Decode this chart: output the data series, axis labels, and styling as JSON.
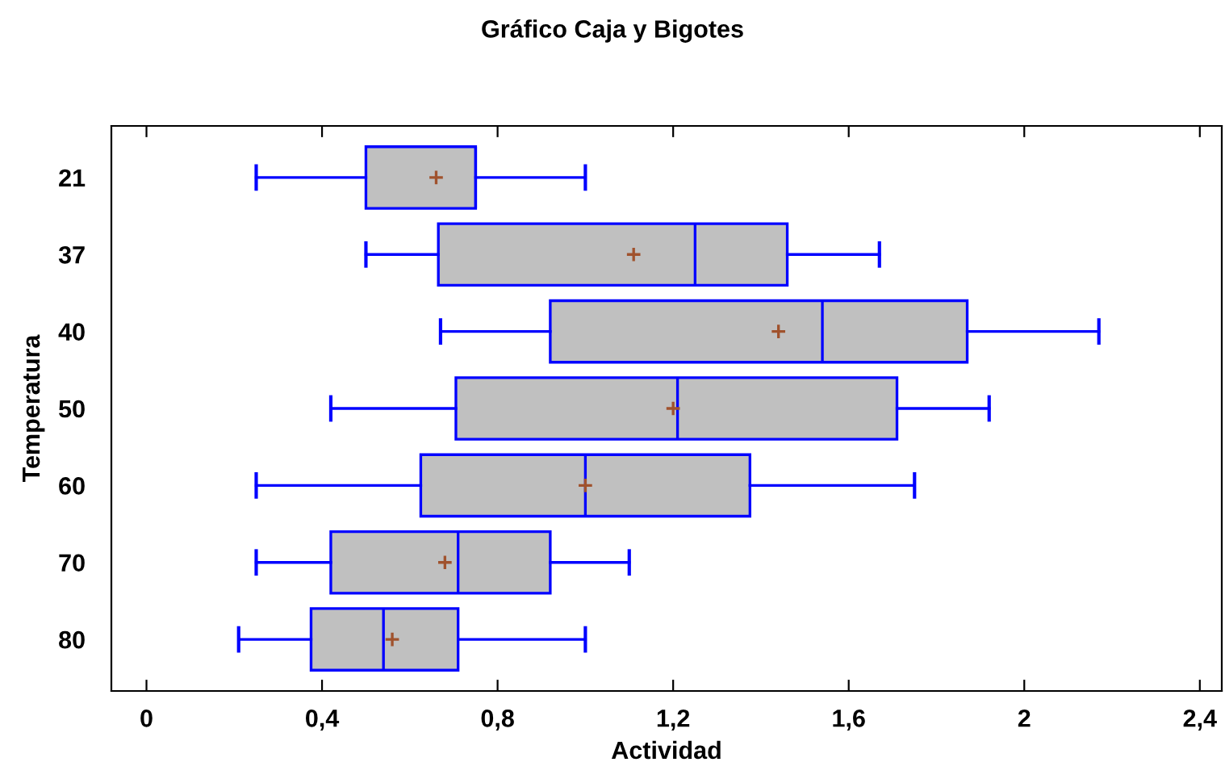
{
  "chart_data": {
    "type": "box",
    "title": "Gráfico Caja y Bigotes",
    "xlabel": "Actividad",
    "ylabel": "Temperatura",
    "orientation": "horizontal",
    "categories": [
      "21",
      "37",
      "40",
      "50",
      "60",
      "70",
      "80"
    ],
    "boxes": [
      {
        "low": 0.25,
        "q1": 0.5,
        "median": 0.75,
        "q3": 0.75,
        "high": 1.0,
        "mean": 0.66
      },
      {
        "low": 0.5,
        "q1": 0.665,
        "median": 1.25,
        "q3": 1.46,
        "high": 1.67,
        "mean": 1.11
      },
      {
        "low": 0.67,
        "q1": 0.92,
        "median": 1.54,
        "q3": 1.87,
        "high": 2.17,
        "mean": 1.44
      },
      {
        "low": 0.42,
        "q1": 0.705,
        "median": 1.21,
        "q3": 1.71,
        "high": 1.92,
        "mean": 1.2
      },
      {
        "low": 0.25,
        "q1": 0.625,
        "median": 1.0,
        "q3": 1.375,
        "high": 1.75,
        "mean": 1.0
      },
      {
        "low": 0.25,
        "q1": 0.42,
        "median": 0.71,
        "q3": 0.92,
        "high": 1.1,
        "mean": 0.68
      },
      {
        "low": 0.21,
        "q1": 0.375,
        "median": 0.54,
        "q3": 0.71,
        "high": 1.0,
        "mean": 0.56
      }
    ],
    "color": "#c0c0c0",
    "xlim": [
      -0.08,
      2.45
    ],
    "xticks": [
      0,
      {
        "value": 0.4,
        "label": "0,4"
      },
      {
        "value": 0.8,
        "label": "0,8"
      },
      {
        "value": 1.2,
        "label": "1,2"
      },
      {
        "value": 1.6,
        "label": "1,6"
      },
      2,
      {
        "value": 2.4,
        "label": "2,4"
      }
    ],
    "grid": false,
    "legend": false
  }
}
